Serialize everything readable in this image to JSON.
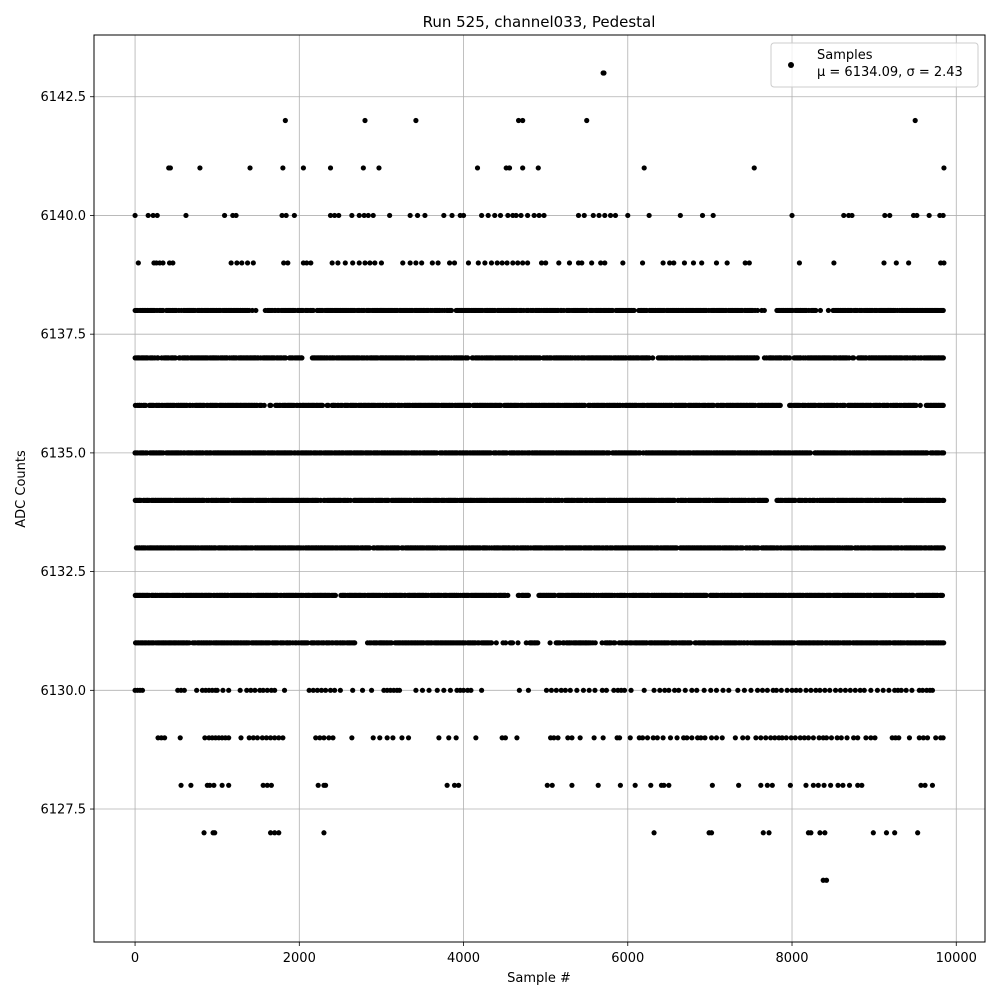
{
  "chart_data": {
    "type": "scatter",
    "title": "Run 525, channel033, Pedestal",
    "xlabel": "Sample #",
    "ylabel": "ADC Counts",
    "xlim": [
      -500,
      10350
    ],
    "ylim": [
      6124.7,
      6143.8
    ],
    "xticks": [
      0,
      2000,
      4000,
      6000,
      8000,
      10000
    ],
    "xtick_labels": [
      "0",
      "2000",
      "4000",
      "6000",
      "8000",
      "10000"
    ],
    "yticks": [
      6127.5,
      6130.0,
      6132.5,
      6135.0,
      6137.5,
      6140.0,
      6142.5
    ],
    "ytick_labels": [
      "6127.5",
      "6130.0",
      "6132.5",
      "6135.0",
      "6137.5",
      "6140.0",
      "6142.5"
    ],
    "grid": true,
    "legend": {
      "placement": "top-right",
      "entries": [
        {
          "label": "Samples",
          "sublabel": "μ = 6134.09, σ = 2.43"
        }
      ]
    },
    "marker_color": "#000000",
    "series": [
      {
        "name": "Samples",
        "points": [
          [
            5700,
            6143
          ],
          [
            5710,
            6143
          ],
          [
            1830,
            6142
          ],
          [
            2800,
            6142
          ],
          [
            3420,
            6142
          ],
          [
            4670,
            6142
          ],
          [
            4720,
            6142
          ],
          [
            5500,
            6142
          ],
          [
            9500,
            6142
          ],
          [
            410,
            6141
          ],
          [
            430,
            6141
          ],
          [
            790,
            6141
          ],
          [
            1400,
            6141
          ],
          [
            1800,
            6141
          ],
          [
            2050,
            6141
          ],
          [
            2380,
            6141
          ],
          [
            2780,
            6141
          ],
          [
            2970,
            6141
          ],
          [
            4170,
            6141
          ],
          [
            4520,
            6141
          ],
          [
            4560,
            6141
          ],
          [
            4720,
            6141
          ],
          [
            4910,
            6141
          ],
          [
            6200,
            6141
          ],
          [
            7540,
            6141
          ],
          [
            9850,
            6141
          ],
          [
            8380,
            6126
          ],
          [
            8420,
            6126
          ],
          [
            840,
            6127
          ],
          [
            950,
            6127
          ],
          [
            970,
            6127
          ],
          [
            1650,
            6127
          ],
          [
            1700,
            6127
          ],
          [
            1750,
            6127
          ],
          [
            2300,
            6127
          ],
          [
            6320,
            6127
          ],
          [
            6990,
            6127
          ],
          [
            7020,
            6127
          ],
          [
            7650,
            6127
          ],
          [
            7720,
            6127
          ],
          [
            8200,
            6127
          ],
          [
            8230,
            6127
          ],
          [
            8340,
            6127
          ],
          [
            8400,
            6127
          ],
          [
            8990,
            6127
          ],
          [
            9150,
            6127
          ],
          [
            9250,
            6127
          ],
          [
            9530,
            6127
          ],
          [
            560,
            6128
          ],
          [
            680,
            6128
          ],
          [
            880,
            6128
          ],
          [
            910,
            6128
          ],
          [
            960,
            6128
          ],
          [
            1060,
            6128
          ],
          [
            1140,
            6128
          ],
          [
            1560,
            6128
          ],
          [
            1610,
            6128
          ],
          [
            1660,
            6128
          ],
          [
            2230,
            6128
          ],
          [
            2300,
            6128
          ],
          [
            2320,
            6128
          ],
          [
            3800,
            6128
          ],
          [
            3890,
            6128
          ],
          [
            3940,
            6128
          ],
          [
            5020,
            6128
          ],
          [
            5080,
            6128
          ],
          [
            5320,
            6128
          ],
          [
            5640,
            6128
          ],
          [
            5910,
            6128
          ],
          [
            6090,
            6128
          ],
          [
            6280,
            6128
          ],
          [
            6410,
            6128
          ],
          [
            6440,
            6128
          ],
          [
            6500,
            6128
          ],
          [
            7030,
            6128
          ],
          [
            7350,
            6128
          ],
          [
            7620,
            6128
          ],
          [
            7700,
            6128
          ],
          [
            7760,
            6128
          ],
          [
            7980,
            6128
          ],
          [
            8170,
            6128
          ],
          [
            8260,
            6128
          ],
          [
            8320,
            6128
          ],
          [
            8390,
            6128
          ],
          [
            8470,
            6128
          ],
          [
            8560,
            6128
          ],
          [
            8620,
            6128
          ],
          [
            8700,
            6128
          ],
          [
            8800,
            6128
          ],
          [
            8850,
            6128
          ],
          [
            9570,
            6128
          ],
          [
            9620,
            6128
          ],
          [
            9710,
            6128
          ]
        ],
        "dense_levels": [
          {
            "y": 6140,
            "x": [
              0,
              160,
              220,
              270,
              620,
              1090,
              1190,
              1230,
              1790,
              1840,
              1940,
              2380,
              2430,
              2480,
              2640,
              2730,
              2790,
              2840,
              2900,
              3100,
              3350,
              3440,
              3530,
              3760,
              3860,
              3960,
              4000,
              4220,
              4300,
              4380,
              4450,
              4540,
              4600,
              4640,
              4700,
              4780,
              4860,
              4920,
              4980,
              5400,
              5470,
              5580,
              5650,
              5720,
              5790,
              5850,
              6000,
              6260,
              6640,
              6910,
              7040,
              8000,
              8630,
              8690,
              8730,
              9130,
              9190,
              9480,
              9520,
              9670,
              9800,
              9840
            ]
          },
          {
            "y": 6139,
            "x": [
              40,
              230,
              260,
              300,
              340,
              420,
              460,
              1170,
              1240,
              1300,
              1370,
              1440,
              1810,
              1860,
              2050,
              2090,
              2140,
              2400,
              2470,
              2560,
              2650,
              2730,
              2800,
              2860,
              2920,
              3000,
              3260,
              3350,
              3420,
              3490,
              3620,
              3690,
              3830,
              3890,
              4060,
              4180,
              4260,
              4340,
              4410,
              4470,
              4530,
              4600,
              4660,
              4720,
              4780,
              4950,
              5000,
              5160,
              5290,
              5400,
              5440,
              5560,
              5670,
              5720,
              5940,
              6180,
              6430,
              6510,
              6560,
              6690,
              6800,
              6900,
              7080,
              7210,
              7430,
              7480,
              8090,
              8510,
              9120,
              9270,
              9420,
              9810,
              9850
            ]
          },
          {
            "y": 6138,
            "x_range": [
              0,
              9850
            ],
            "gaps": [
              [
                1400,
                1600
              ],
              [
                7560,
                7800
              ],
              [
                8300,
                8500
              ]
            ]
          },
          {
            "y": 6137,
            "x_range": [
              0,
              9850
            ],
            "gaps": [
              [
                2050,
                2150
              ],
              [
                6250,
                6350
              ],
              [
                7580,
                7650
              ],
              [
                7950,
                8000
              ]
            ]
          },
          {
            "y": 6136,
            "x_range": [
              0,
              9850
            ],
            "gaps": [
              [
                1550,
                1650
              ],
              [
                7850,
                7950
              ],
              [
                9530,
                9620
              ]
            ]
          },
          {
            "y": 6135,
            "x_range": [
              0,
              9850
            ],
            "gaps": []
          },
          {
            "y": 6134,
            "x_range": [
              0,
              9850
            ],
            "gaps": [
              [
                7700,
                7800
              ]
            ]
          },
          {
            "y": 6133,
            "x_range": [
              0,
              9850
            ],
            "gaps": []
          },
          {
            "y": 6132,
            "x_range": [
              0,
              9850
            ],
            "gaps": [
              [
                4550,
                4650
              ],
              [
                4800,
                4900
              ]
            ]
          },
          {
            "y": 6131,
            "x_range": [
              0,
              9850
            ],
            "gaps": [
              [
                2650,
                2850
              ],
              [
                4350,
                4550
              ],
              [
                4600,
                4800
              ],
              [
                4900,
                5100
              ],
              [
                5550,
                5700
              ],
              [
                5850,
                5950
              ]
            ]
          },
          {
            "y": 6130,
            "x": [
              0,
              30,
              60,
              90,
              520,
              560,
              600,
              750,
              820,
              860,
              900,
              940,
              980,
              1000,
              1070,
              1140,
              1280,
              1360,
              1410,
              1460,
              1520,
              1560,
              1610,
              1660,
              1700,
              1820,
              2120,
              2170,
              2220,
              2270,
              2320,
              2380,
              2430,
              2500,
              2650,
              2770,
              2880,
              3030,
              3070,
              3110,
              3150,
              3190,
              3220,
              3420,
              3500,
              3580,
              3680,
              3760,
              3840,
              3920,
              3960,
              4000,
              4050,
              4090,
              4220,
              4680,
              4790,
              5010,
              5070,
              5130,
              5190,
              5240,
              5300,
              5380,
              5460,
              5530,
              5600,
              5690,
              5740,
              5830,
              5880,
              5920,
              5960,
              6040,
              6200,
              6320,
              6390,
              6450,
              6500,
              6570,
              6620,
              6700,
              6780,
              6840,
              6930,
              7010,
              7080,
              7160,
              7230,
              7340,
              7420,
              7500,
              7580,
              7640,
              7700,
              7770,
              7810,
              7870,
              7940,
              8000,
              8050,
              8100,
              8170,
              8230,
              8290,
              8340,
              8400,
              8460,
              8530,
              8590,
              8650,
              8710,
              8770,
              8830,
              8880,
              8960,
              9040,
              9110,
              9180,
              9250,
              9290,
              9330,
              9390,
              9460,
              9550,
              9590,
              9640,
              9680,
              9710
            ]
          },
          {
            "y": 6129,
            "x": [
              280,
              320,
              360,
              550,
              850,
              900,
              940,
              980,
              1020,
              1060,
              1100,
              1140,
              1290,
              1390,
              1440,
              1490,
              1550,
              1600,
              1650,
              1700,
              1750,
              1800,
              2200,
              2250,
              2300,
              2360,
              2410,
              2640,
              2900,
              2980,
              3070,
              3140,
              3250,
              3330,
              3700,
              3820,
              3910,
              4150,
              4470,
              4510,
              4650,
              5060,
              5100,
              5150,
              5270,
              5320,
              5420,
              5590,
              5700,
              5870,
              5900,
              6030,
              6140,
              6180,
              6240,
              6310,
              6360,
              6430,
              6520,
              6600,
              6680,
              6720,
              6780,
              6850,
              6890,
              6940,
              7020,
              7080,
              7150,
              7310,
              7400,
              7460,
              7560,
              7620,
              7680,
              7740,
              7790,
              7840,
              7880,
              7930,
              7990,
              8040,
              8100,
              8150,
              8200,
              8260,
              8330,
              8380,
              8420,
              8480,
              8550,
              8600,
              8670,
              8750,
              8800,
              8900,
              8960,
              9010,
              9220,
              9260,
              9300,
              9430,
              9550,
              9600,
              9650,
              9750,
              9810,
              9840
            ]
          }
        ]
      }
    ]
  }
}
